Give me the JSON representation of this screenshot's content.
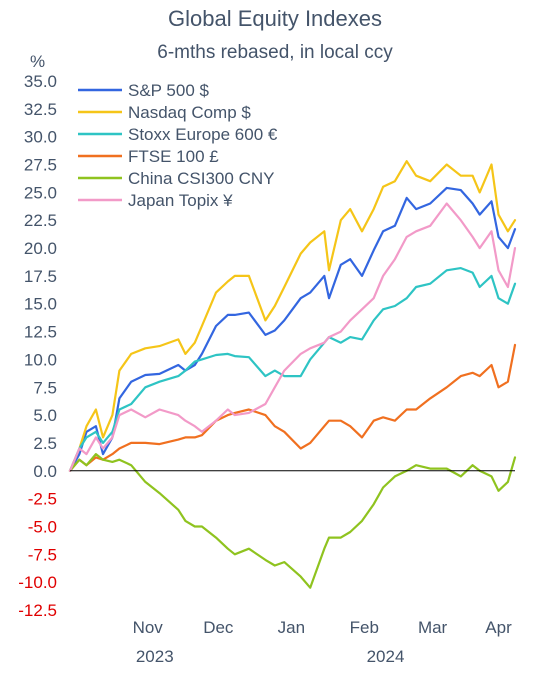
{
  "chart_data": {
    "type": "line",
    "title": "Global Equity Indexes",
    "subtitle": "6-mths rebased, in local ccy",
    "ylabel": "%",
    "ylim": [
      -12.5,
      35
    ],
    "yticks": [
      "35.0",
      "32.5",
      "30.0",
      "27.5",
      "25.0",
      "22.5",
      "20.0",
      "17.5",
      "15.0",
      "12.5",
      "10.0",
      "7.5",
      "5.0",
      "2.5",
      "0.0",
      "-2.5",
      "-5.0",
      "-7.5",
      "-10.0",
      "-12.5"
    ],
    "xlim": [
      "2023-10-13",
      "2024-04-19"
    ],
    "month_ticks": [
      {
        "label": "Nov",
        "date": "2023-11-15"
      },
      {
        "label": "Dec",
        "date": "2023-12-15"
      },
      {
        "label": "Jan",
        "date": "2024-01-15"
      },
      {
        "label": "Feb",
        "date": "2024-02-15"
      },
      {
        "label": "Mar",
        "date": "2024-03-15"
      },
      {
        "label": "Apr",
        "date": "2024-04-12"
      }
    ],
    "year_labels": [
      {
        "label": "2023",
        "date": "2023-11-18"
      },
      {
        "label": "2024",
        "date": "2024-02-24"
      }
    ],
    "legend_position": "top-left",
    "grid": false,
    "series": [
      {
        "name": "S&P 500 $",
        "color": "#3366e0",
        "points": [
          [
            "2023-10-13",
            0
          ],
          [
            "2023-10-17",
            1.5
          ],
          [
            "2023-10-20",
            3.5
          ],
          [
            "2023-10-24",
            4
          ],
          [
            "2023-10-27",
            1.5
          ],
          [
            "2023-10-31",
            3
          ],
          [
            "2023-11-03",
            6.5
          ],
          [
            "2023-11-08",
            8
          ],
          [
            "2023-11-14",
            8.6
          ],
          [
            "2023-11-20",
            8.7
          ],
          [
            "2023-11-28",
            9.5
          ],
          [
            "2023-12-01",
            9
          ],
          [
            "2023-12-05",
            9.5
          ],
          [
            "2023-12-08",
            10.5
          ],
          [
            "2023-12-14",
            13
          ],
          [
            "2023-12-19",
            14
          ],
          [
            "2023-12-22",
            14
          ],
          [
            "2023-12-28",
            14.2
          ],
          [
            "2024-01-04",
            12.2
          ],
          [
            "2024-01-08",
            12.6
          ],
          [
            "2024-01-12",
            13.5
          ],
          [
            "2024-01-19",
            15.5
          ],
          [
            "2024-01-23",
            16
          ],
          [
            "2024-01-29",
            17.5
          ],
          [
            "2024-01-31",
            15.5
          ],
          [
            "2024-02-05",
            18.5
          ],
          [
            "2024-02-09",
            19
          ],
          [
            "2024-02-14",
            17.5
          ],
          [
            "2024-02-19",
            19.8
          ],
          [
            "2024-02-23",
            21.5
          ],
          [
            "2024-02-28",
            22
          ],
          [
            "2024-03-04",
            24.5
          ],
          [
            "2024-03-08",
            23.5
          ],
          [
            "2024-03-14",
            24
          ],
          [
            "2024-03-21",
            25.4
          ],
          [
            "2024-03-27",
            25.2
          ],
          [
            "2024-04-01",
            24
          ],
          [
            "2024-04-04",
            23
          ],
          [
            "2024-04-09",
            24.2
          ],
          [
            "2024-04-12",
            21
          ],
          [
            "2024-04-16",
            20
          ],
          [
            "2024-04-19",
            21.7
          ]
        ]
      },
      {
        "name": "Nasdaq Comp $",
        "color": "#f5c518",
        "points": [
          [
            "2023-10-13",
            0
          ],
          [
            "2023-10-17",
            2
          ],
          [
            "2023-10-20",
            4
          ],
          [
            "2023-10-24",
            5.5
          ],
          [
            "2023-10-27",
            3
          ],
          [
            "2023-10-31",
            5
          ],
          [
            "2023-11-03",
            9
          ],
          [
            "2023-11-08",
            10.5
          ],
          [
            "2023-11-14",
            11
          ],
          [
            "2023-11-20",
            11.2
          ],
          [
            "2023-11-28",
            11.8
          ],
          [
            "2023-12-01",
            10.5
          ],
          [
            "2023-12-05",
            11.5
          ],
          [
            "2023-12-08",
            13
          ],
          [
            "2023-12-14",
            16
          ],
          [
            "2023-12-19",
            17
          ],
          [
            "2023-12-22",
            17.5
          ],
          [
            "2023-12-28",
            17.5
          ],
          [
            "2024-01-04",
            13.5
          ],
          [
            "2024-01-08",
            14.8
          ],
          [
            "2024-01-12",
            16.5
          ],
          [
            "2024-01-19",
            19.5
          ],
          [
            "2024-01-23",
            20.5
          ],
          [
            "2024-01-29",
            21.5
          ],
          [
            "2024-01-31",
            18
          ],
          [
            "2024-02-05",
            22.5
          ],
          [
            "2024-02-09",
            23.5
          ],
          [
            "2024-02-14",
            21.5
          ],
          [
            "2024-02-19",
            23.5
          ],
          [
            "2024-02-23",
            25.5
          ],
          [
            "2024-02-28",
            26
          ],
          [
            "2024-03-04",
            27.8
          ],
          [
            "2024-03-08",
            26.5
          ],
          [
            "2024-03-14",
            26
          ],
          [
            "2024-03-21",
            27.5
          ],
          [
            "2024-03-27",
            26.5
          ],
          [
            "2024-04-01",
            26.5
          ],
          [
            "2024-04-04",
            25
          ],
          [
            "2024-04-09",
            27.5
          ],
          [
            "2024-04-12",
            23
          ],
          [
            "2024-04-16",
            21.5
          ],
          [
            "2024-04-19",
            22.5
          ]
        ]
      },
      {
        "name": "Stoxx Europe 600  €",
        "color": "#2ec4c4",
        "points": [
          [
            "2023-10-13",
            0
          ],
          [
            "2023-10-17",
            2
          ],
          [
            "2023-10-20",
            3
          ],
          [
            "2023-10-24",
            3.5
          ],
          [
            "2023-10-27",
            2.5
          ],
          [
            "2023-10-31",
            3.5
          ],
          [
            "2023-11-03",
            5.5
          ],
          [
            "2023-11-08",
            6
          ],
          [
            "2023-11-14",
            7.5
          ],
          [
            "2023-11-20",
            8
          ],
          [
            "2023-11-28",
            8.5
          ],
          [
            "2023-12-01",
            9
          ],
          [
            "2023-12-05",
            9.8
          ],
          [
            "2023-12-08",
            10
          ],
          [
            "2023-12-14",
            10.4
          ],
          [
            "2023-12-19",
            10.5
          ],
          [
            "2023-12-22",
            10.3
          ],
          [
            "2023-12-28",
            10.2
          ],
          [
            "2024-01-04",
            8.5
          ],
          [
            "2024-01-08",
            9
          ],
          [
            "2024-01-12",
            8.5
          ],
          [
            "2024-01-19",
            8.5
          ],
          [
            "2024-01-23",
            10
          ],
          [
            "2024-01-29",
            11.5
          ],
          [
            "2024-01-31",
            12
          ],
          [
            "2024-02-05",
            11.5
          ],
          [
            "2024-02-09",
            12
          ],
          [
            "2024-02-14",
            11.8
          ],
          [
            "2024-02-19",
            13.5
          ],
          [
            "2024-02-23",
            14.5
          ],
          [
            "2024-02-28",
            14.8
          ],
          [
            "2024-03-04",
            15.5
          ],
          [
            "2024-03-08",
            16.5
          ],
          [
            "2024-03-14",
            16.8
          ],
          [
            "2024-03-21",
            18
          ],
          [
            "2024-03-27",
            18.2
          ],
          [
            "2024-04-01",
            17.8
          ],
          [
            "2024-04-04",
            16.5
          ],
          [
            "2024-04-09",
            17.5
          ],
          [
            "2024-04-12",
            15.5
          ],
          [
            "2024-04-16",
            15
          ],
          [
            "2024-04-19",
            16.8
          ]
        ]
      },
      {
        "name": "FTSE 100  £",
        "color": "#f07020",
        "points": [
          [
            "2023-10-13",
            0
          ],
          [
            "2023-10-17",
            1
          ],
          [
            "2023-10-20",
            0.5
          ],
          [
            "2023-10-24",
            1.2
          ],
          [
            "2023-10-27",
            1
          ],
          [
            "2023-10-31",
            1.5
          ],
          [
            "2023-11-03",
            2
          ],
          [
            "2023-11-08",
            2.5
          ],
          [
            "2023-11-14",
            2.5
          ],
          [
            "2023-11-20",
            2.4
          ],
          [
            "2023-11-28",
            2.8
          ],
          [
            "2023-12-01",
            3
          ],
          [
            "2023-12-05",
            3
          ],
          [
            "2023-12-08",
            3.2
          ],
          [
            "2023-12-14",
            4.5
          ],
          [
            "2023-12-19",
            5
          ],
          [
            "2023-12-22",
            5.2
          ],
          [
            "2023-12-28",
            5.5
          ],
          [
            "2024-01-04",
            5
          ],
          [
            "2024-01-08",
            4
          ],
          [
            "2024-01-12",
            3.5
          ],
          [
            "2024-01-19",
            2
          ],
          [
            "2024-01-23",
            2.5
          ],
          [
            "2024-01-29",
            4
          ],
          [
            "2024-01-31",
            4.5
          ],
          [
            "2024-02-05",
            4.5
          ],
          [
            "2024-02-09",
            4
          ],
          [
            "2024-02-14",
            3
          ],
          [
            "2024-02-19",
            4.5
          ],
          [
            "2024-02-23",
            4.8
          ],
          [
            "2024-02-28",
            4.5
          ],
          [
            "2024-03-04",
            5.5
          ],
          [
            "2024-03-08",
            5.5
          ],
          [
            "2024-03-14",
            6.5
          ],
          [
            "2024-03-21",
            7.5
          ],
          [
            "2024-03-27",
            8.5
          ],
          [
            "2024-04-01",
            8.8
          ],
          [
            "2024-04-04",
            8.5
          ],
          [
            "2024-04-09",
            9.5
          ],
          [
            "2024-04-12",
            7.5
          ],
          [
            "2024-04-16",
            8
          ],
          [
            "2024-04-19",
            11.3
          ]
        ]
      },
      {
        "name": "China CSI300  CNY",
        "color": "#8fc31f",
        "points": [
          [
            "2023-10-13",
            0
          ],
          [
            "2023-10-17",
            1
          ],
          [
            "2023-10-20",
            0.5
          ],
          [
            "2023-10-24",
            1.5
          ],
          [
            "2023-10-27",
            1
          ],
          [
            "2023-10-31",
            0.8
          ],
          [
            "2023-11-03",
            1
          ],
          [
            "2023-11-08",
            0.5
          ],
          [
            "2023-11-14",
            -1
          ],
          [
            "2023-11-20",
            -2
          ],
          [
            "2023-11-28",
            -3.5
          ],
          [
            "2023-12-01",
            -4.5
          ],
          [
            "2023-12-05",
            -5
          ],
          [
            "2023-12-08",
            -5
          ],
          [
            "2023-12-14",
            -6
          ],
          [
            "2023-12-19",
            -7
          ],
          [
            "2023-12-22",
            -7.5
          ],
          [
            "2023-12-28",
            -7
          ],
          [
            "2024-01-04",
            -8
          ],
          [
            "2024-01-08",
            -8.5
          ],
          [
            "2024-01-12",
            -8.2
          ],
          [
            "2024-01-19",
            -9.5
          ],
          [
            "2024-01-23",
            -10.5
          ],
          [
            "2024-01-29",
            -7
          ],
          [
            "2024-01-31",
            -6
          ],
          [
            "2024-02-05",
            -6
          ],
          [
            "2024-02-09",
            -5.5
          ],
          [
            "2024-02-14",
            -4.5
          ],
          [
            "2024-02-19",
            -3
          ],
          [
            "2024-02-23",
            -1.5
          ],
          [
            "2024-02-28",
            -0.5
          ],
          [
            "2024-03-04",
            0
          ],
          [
            "2024-03-08",
            0.5
          ],
          [
            "2024-03-14",
            0.2
          ],
          [
            "2024-03-21",
            0.2
          ],
          [
            "2024-03-27",
            -0.5
          ],
          [
            "2024-04-01",
            0.5
          ],
          [
            "2024-04-04",
            0
          ],
          [
            "2024-04-09",
            -0.5
          ],
          [
            "2024-04-12",
            -1.8
          ],
          [
            "2024-04-16",
            -1
          ],
          [
            "2024-04-19",
            1.2
          ]
        ]
      },
      {
        "name": "Japan Topix ¥",
        "color": "#f29ac8",
        "points": [
          [
            "2023-10-13",
            0
          ],
          [
            "2023-10-17",
            2
          ],
          [
            "2023-10-20",
            1.5
          ],
          [
            "2023-10-24",
            3
          ],
          [
            "2023-10-27",
            2
          ],
          [
            "2023-10-31",
            3
          ],
          [
            "2023-11-03",
            5
          ],
          [
            "2023-11-08",
            5.5
          ],
          [
            "2023-11-14",
            4.8
          ],
          [
            "2023-11-20",
            5.5
          ],
          [
            "2023-11-28",
            5
          ],
          [
            "2023-12-01",
            4.5
          ],
          [
            "2023-12-05",
            4
          ],
          [
            "2023-12-08",
            3.5
          ],
          [
            "2023-12-14",
            4.5
          ],
          [
            "2023-12-19",
            5.5
          ],
          [
            "2023-12-22",
            5
          ],
          [
            "2023-12-28",
            5.2
          ],
          [
            "2024-01-04",
            6
          ],
          [
            "2024-01-08",
            7.5
          ],
          [
            "2024-01-12",
            9
          ],
          [
            "2024-01-19",
            10.5
          ],
          [
            "2024-01-23",
            11
          ],
          [
            "2024-01-29",
            11.5
          ],
          [
            "2024-01-31",
            12
          ],
          [
            "2024-02-05",
            12.5
          ],
          [
            "2024-02-09",
            13.5
          ],
          [
            "2024-02-14",
            14.5
          ],
          [
            "2024-02-19",
            15.5
          ],
          [
            "2024-02-23",
            17.5
          ],
          [
            "2024-02-28",
            19
          ],
          [
            "2024-03-04",
            21
          ],
          [
            "2024-03-08",
            21.5
          ],
          [
            "2024-03-14",
            22
          ],
          [
            "2024-03-21",
            24
          ],
          [
            "2024-03-27",
            22.5
          ],
          [
            "2024-04-01",
            21
          ],
          [
            "2024-04-04",
            20
          ],
          [
            "2024-04-09",
            21.5
          ],
          [
            "2024-04-12",
            18
          ],
          [
            "2024-04-16",
            16.5
          ],
          [
            "2024-04-19",
            20
          ]
        ]
      }
    ]
  },
  "colors": {
    "text": "#44546a",
    "negative_tick": "#e00000",
    "axis": "#000000"
  }
}
